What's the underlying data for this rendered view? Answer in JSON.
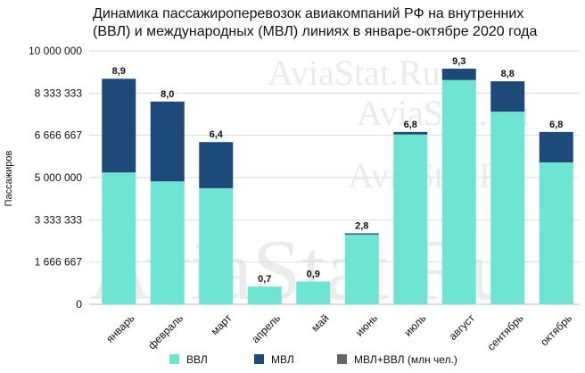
{
  "watermark": "AviaStat.Ru",
  "chart_data": {
    "type": "bar",
    "stacked": true,
    "title": [
      "Динамика пассажироперевозок авиакомпаний РФ на внутренних",
      "(ВВЛ) и международных (МВЛ) линиях в январе-октябре 2020 года"
    ],
    "ylabel": "Пассажиров",
    "xlabel": "",
    "ylim": [
      0,
      10000000
    ],
    "yticks": [
      0,
      1666667,
      3333333,
      5000000,
      6666667,
      8333333,
      10000000
    ],
    "ytick_labels": [
      "0",
      "1 666 667",
      "3 333 333",
      "5 000 000",
      "6 666 667",
      "8 333 333",
      "10 000 000"
    ],
    "categories": [
      "январь",
      "февраль",
      "март",
      "апрель",
      "май",
      "июнь",
      "июль",
      "август",
      "сентябрь",
      "октябрь"
    ],
    "series": [
      {
        "name": "ВВЛ",
        "color": "#6ee5d2",
        "values": [
          5200000,
          4850000,
          4580000,
          700000,
          900000,
          2750000,
          6700000,
          8850000,
          7600000,
          5600000
        ]
      },
      {
        "name": "МВЛ",
        "color": "#1e4a7a",
        "values": [
          3700000,
          3150000,
          1820000,
          0,
          0,
          50000,
          100000,
          450000,
          1200000,
          1200000
        ]
      }
    ],
    "total_series": {
      "name": "МВЛ+ВВЛ (млн чел.)",
      "color": "#666666"
    },
    "data_labels": [
      "8,9",
      "8,0",
      "6,4",
      "0,7",
      "0,9",
      "2,8",
      "6,8",
      "9,3",
      "8,8",
      "6,8"
    ],
    "grid": true,
    "legend_position": "bottom"
  }
}
